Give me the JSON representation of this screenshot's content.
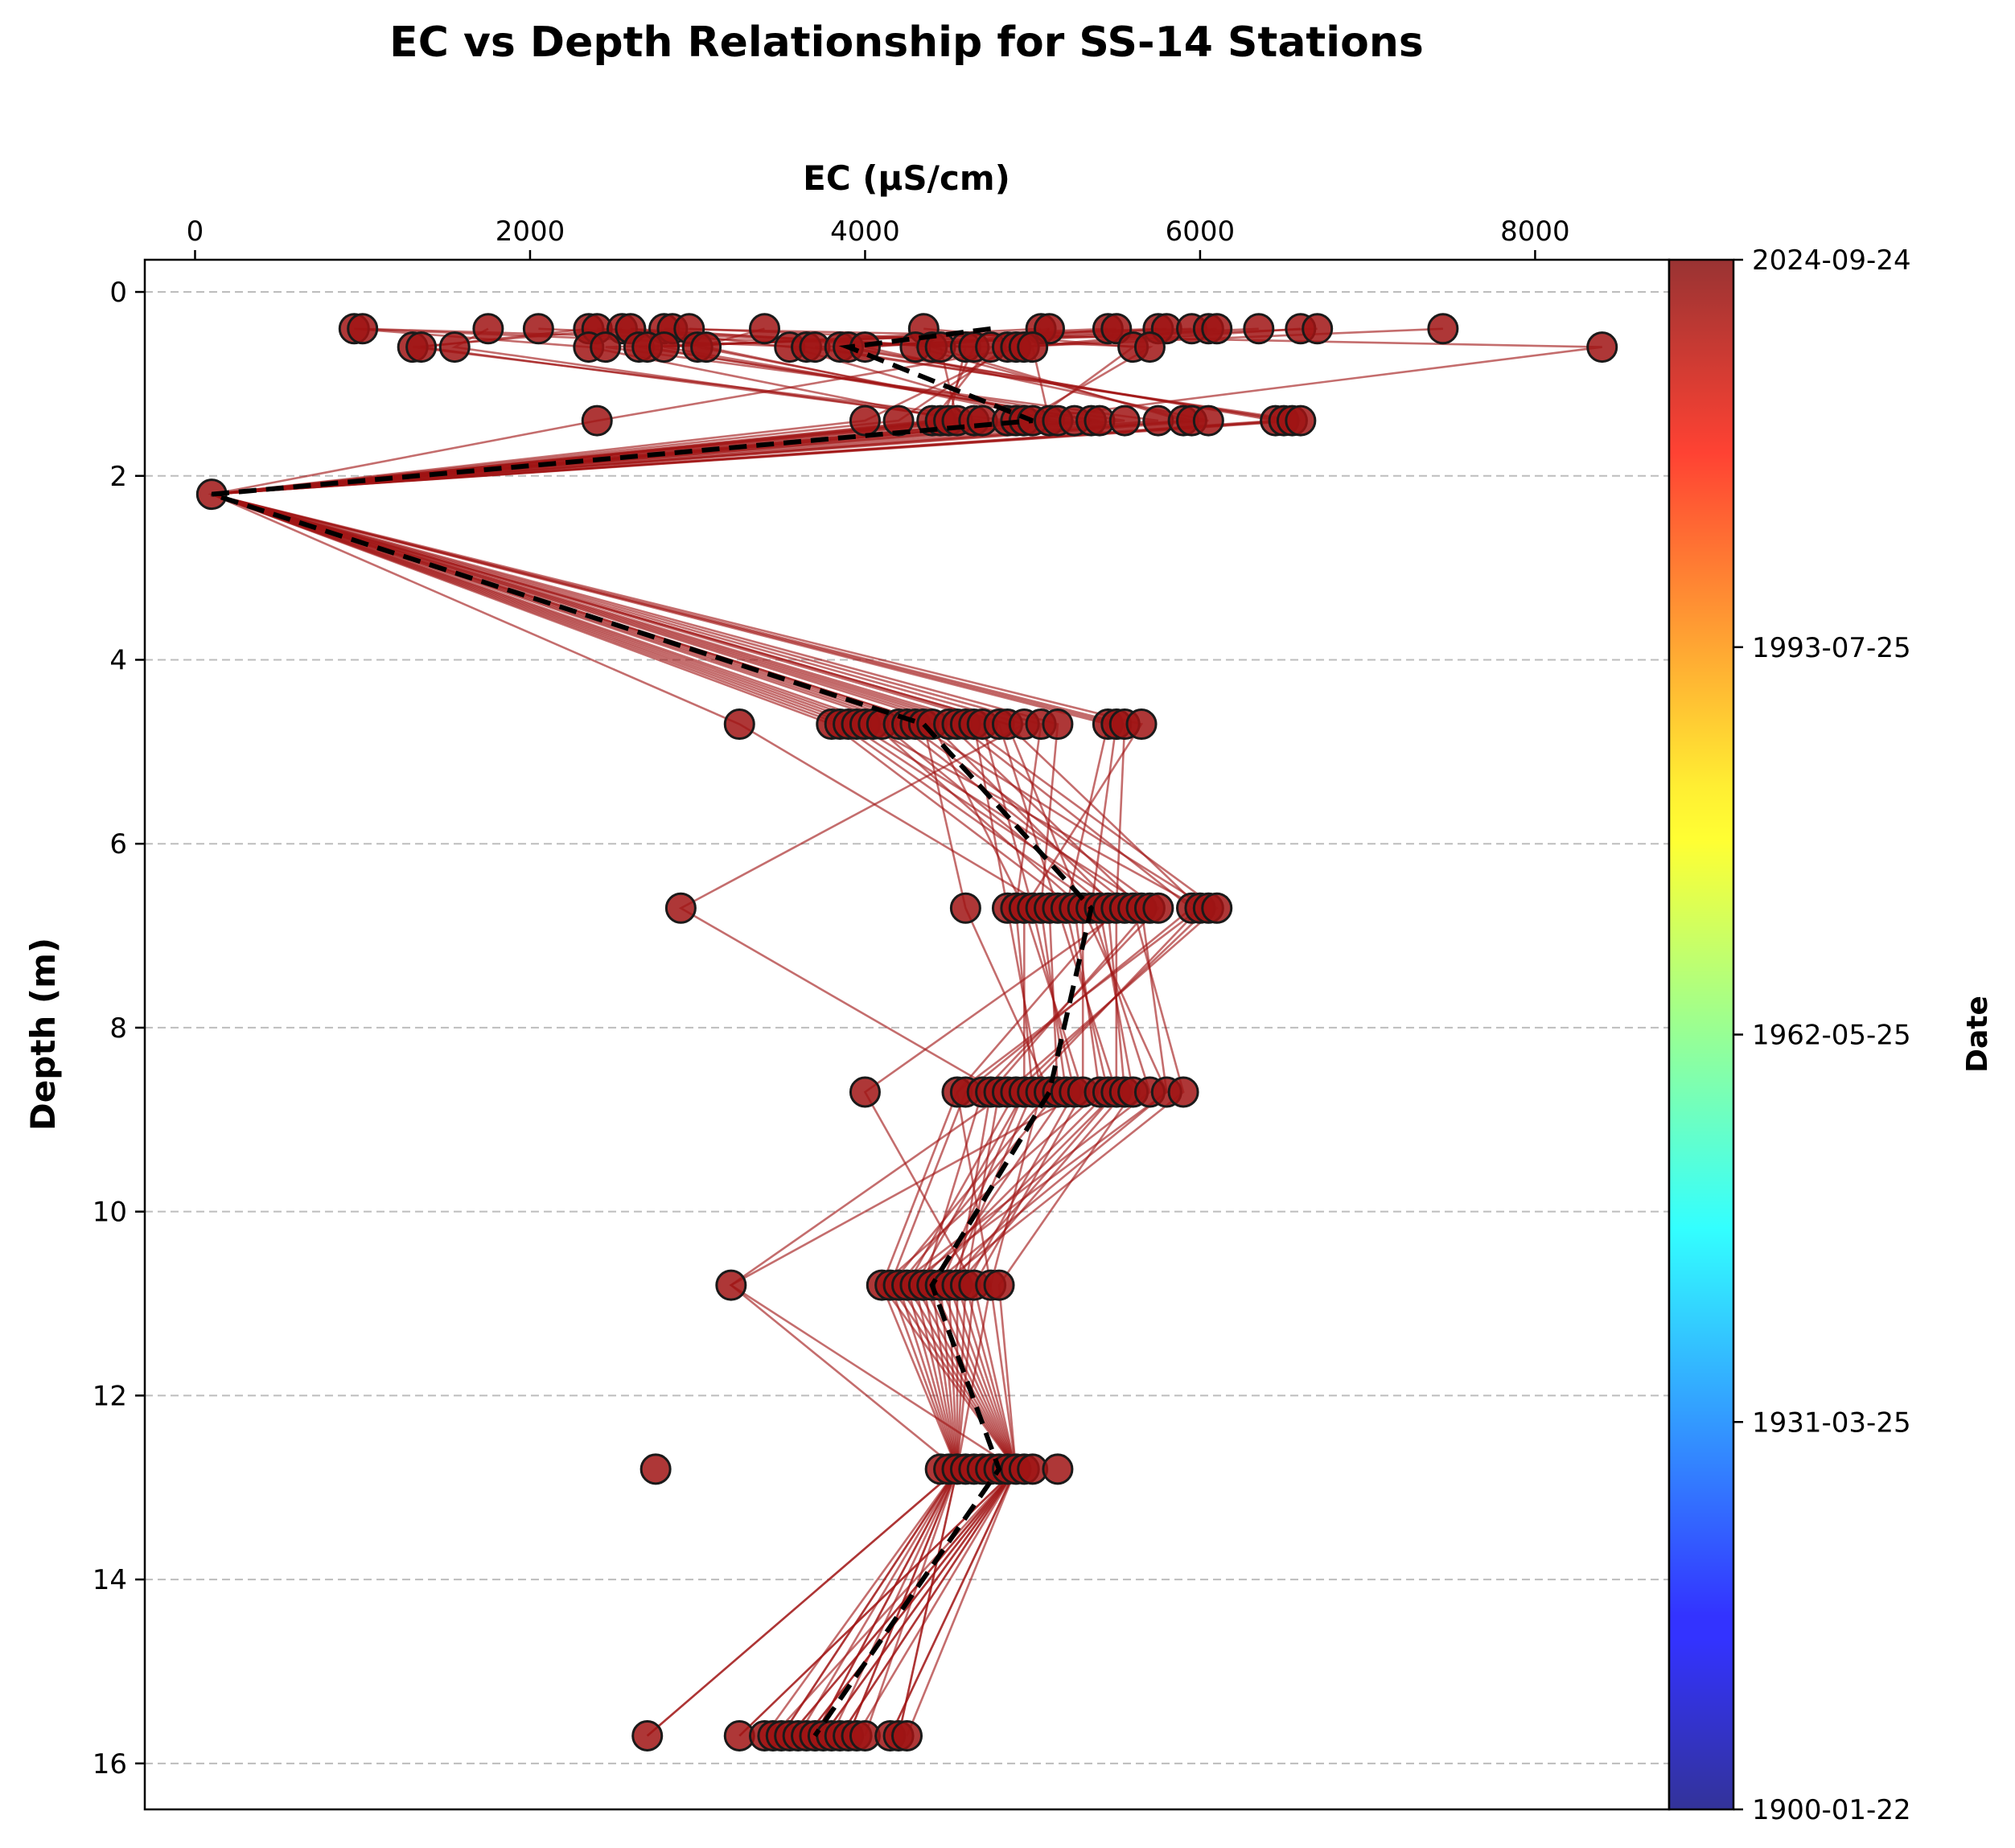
{
  "chart_data": {
    "type": "scatter",
    "title": "EC vs Depth Relationship for SS-14 Stations",
    "xlabel": "EC (µS/cm)",
    "ylabel": "Depth (m)",
    "xlim": [
      -300,
      8800
    ],
    "ylim": [
      16.5,
      -0.35
    ],
    "y_inverted": true,
    "x_axis_position": "top",
    "x_ticks": [
      0,
      2000,
      4000,
      6000,
      8000
    ],
    "y_ticks": [
      0,
      2,
      4,
      6,
      8,
      10,
      12,
      14,
      16
    ],
    "grid": "horizontal dashed",
    "colorbar": {
      "label": "Date",
      "colormap": "jet",
      "ticks": [
        "1900-01-22",
        "1931-03-25",
        "1962-05-25",
        "1993-07-25",
        "2024-09-24"
      ]
    },
    "marker_color": "#a01414",
    "line_color": "#a01414",
    "mean_profile_color": "#000000",
    "depths": [
      0.4,
      0.6,
      1.4,
      2.2,
      4.7,
      6.7,
      8.7,
      10.8,
      12.8,
      15.7
    ],
    "points_by_depth": [
      {
        "depth": 0.4,
        "ec": [
          950,
          1000,
          1750,
          2050,
          2350,
          2400,
          2550,
          2600,
          2800,
          2850,
          2950,
          3400,
          4350,
          5050,
          5100,
          5450,
          5500,
          5750,
          5800,
          5950,
          6050,
          6100,
          6350,
          6600,
          6700,
          7450
        ]
      },
      {
        "depth": 0.6,
        "ec": [
          1300,
          1350,
          1550,
          2350,
          2450,
          2650,
          2700,
          2800,
          3000,
          3050,
          3550,
          3650,
          3700,
          3850,
          3900,
          4000,
          4300,
          4400,
          4450,
          4600,
          4650,
          4750,
          4850,
          4900,
          4950,
          5000,
          5600,
          5700,
          8400
        ]
      },
      {
        "depth": 1.4,
        "ec": [
          2400,
          4000,
          4200,
          4400,
          4450,
          4500,
          4550,
          4650,
          4700,
          4850,
          4900,
          4950,
          5000,
          5100,
          5150,
          5250,
          5350,
          5400,
          5550,
          5750,
          5900,
          5950,
          6050,
          6450,
          6500,
          6550,
          6600
        ]
      },
      {
        "depth": 2.2,
        "ec": [
          100
        ]
      },
      {
        "depth": 4.7,
        "ec": [
          3250,
          3800,
          3850,
          3900,
          3950,
          4000,
          4050,
          4100,
          4200,
          4250,
          4300,
          4350,
          4400,
          4500,
          4550,
          4600,
          4650,
          4700,
          4800,
          4850,
          4950,
          5050,
          5150,
          5450,
          5500,
          5550,
          5650
        ]
      },
      {
        "depth": 6.7,
        "ec": [
          2900,
          4600,
          4850,
          4900,
          4950,
          5000,
          5050,
          5100,
          5150,
          5200,
          5250,
          5300,
          5350,
          5400,
          5450,
          5500,
          5550,
          5600,
          5650,
          5700,
          5750,
          5950,
          6000,
          6050,
          6100
        ]
      },
      {
        "depth": 8.7,
        "ec": [
          4000,
          4550,
          4600,
          4700,
          4750,
          4800,
          4850,
          4900,
          4950,
          5000,
          5050,
          5100,
          5150,
          5200,
          5250,
          5300,
          5400,
          5450,
          5500,
          5550,
          5600,
          5700,
          5800,
          5900
        ]
      },
      {
        "depth": 10.8,
        "ec": [
          3200,
          4100,
          4150,
          4200,
          4250,
          4300,
          4350,
          4400,
          4450,
          4500,
          4550,
          4600,
          4650,
          4750,
          4800
        ]
      },
      {
        "depth": 12.8,
        "ec": [
          2750,
          4450,
          4500,
          4550,
          4600,
          4650,
          4700,
          4750,
          4800,
          4850,
          4900,
          4950,
          5000,
          5150
        ]
      },
      {
        "depth": 15.7,
        "ec": [
          2700,
          3250,
          3400,
          3450,
          3500,
          3550,
          3600,
          3650,
          3700,
          3750,
          3800,
          3850,
          3900,
          3950,
          4000,
          4150,
          4200,
          4250
        ]
      }
    ],
    "mean_profile": {
      "ec": [
        4750,
        3900,
        5000,
        100,
        4350,
        5350,
        5100,
        4400,
        4800,
        3700
      ],
      "depth": [
        0.4,
        0.6,
        1.4,
        2.2,
        4.7,
        6.7,
        8.7,
        10.8,
        12.8,
        15.7
      ]
    }
  }
}
